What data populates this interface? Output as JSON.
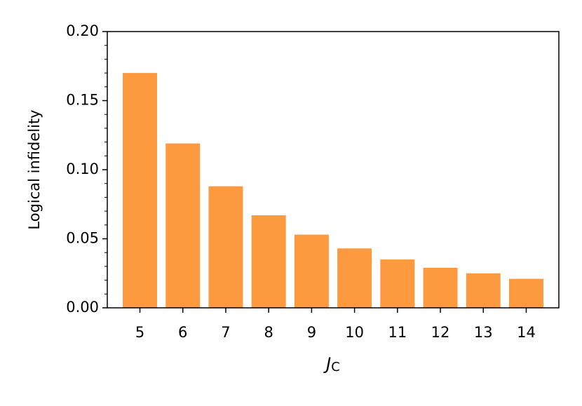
{
  "chart_data": {
    "type": "bar",
    "ylabel": "Logical infidelity",
    "xlabel": "J",
    "xlabel_subscript": "C",
    "categories": [
      "5",
      "6",
      "7",
      "8",
      "9",
      "10",
      "11",
      "12",
      "13",
      "14"
    ],
    "values": [
      0.17,
      0.119,
      0.088,
      0.067,
      0.053,
      0.043,
      0.035,
      0.029,
      0.025,
      0.021
    ],
    "color": "#fd9a40",
    "ylim": [
      0,
      0.2
    ],
    "yticks": [
      {
        "value": 0,
        "label": "0.00"
      },
      {
        "value": 0.05,
        "label": "0.05"
      },
      {
        "value": 0.1,
        "label": "0.10"
      },
      {
        "value": 0.15,
        "label": "0.15"
      },
      {
        "value": 0.2,
        "label": "0.20"
      }
    ],
    "yminorticks": [
      0.01,
      0.02,
      0.03,
      0.04,
      0.06,
      0.07,
      0.08,
      0.09,
      0.11,
      0.12,
      0.13,
      0.14,
      0.16,
      0.17,
      0.18,
      0.19
    ]
  }
}
